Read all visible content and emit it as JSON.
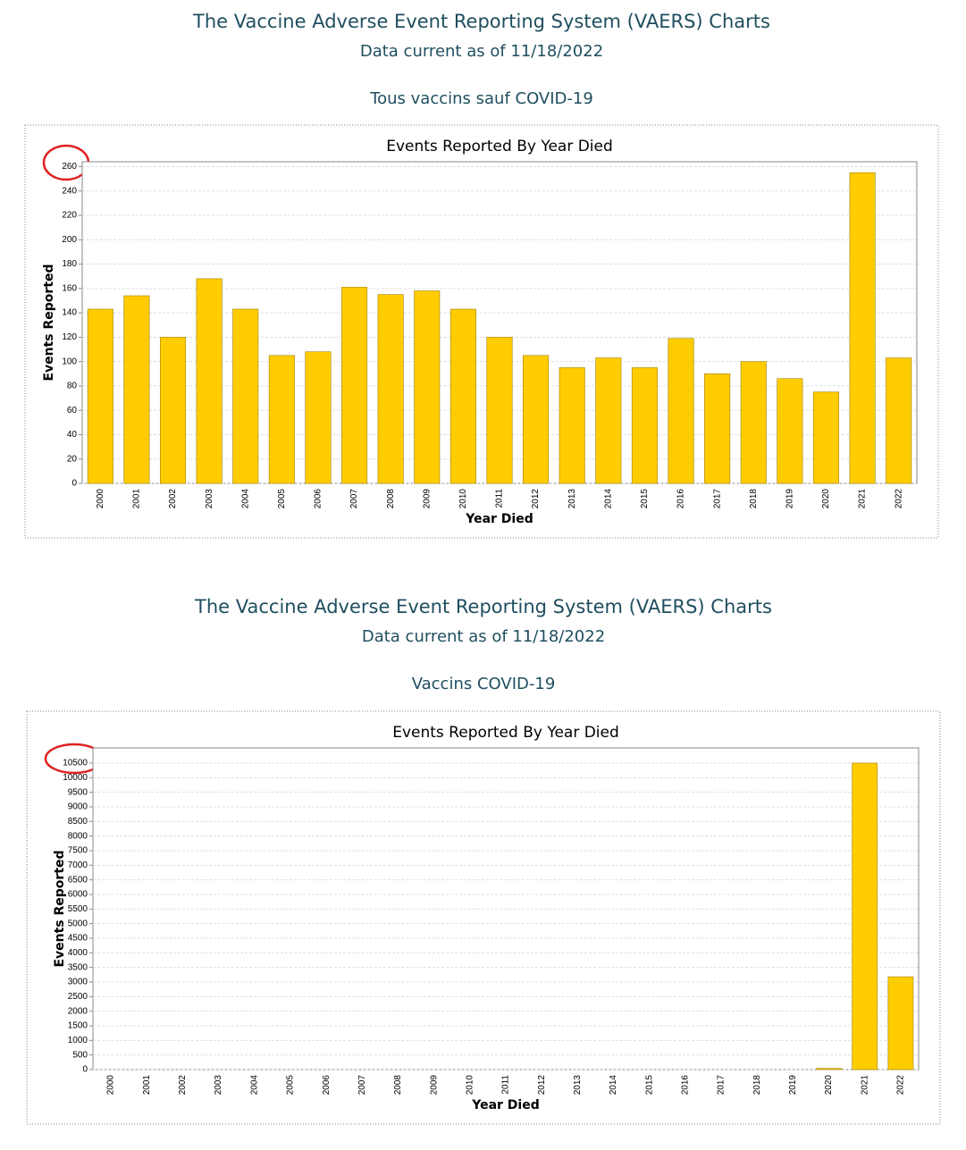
{
  "chart_data": [
    {
      "type": "bar",
      "header": "The Vaccine Adverse Event Reporting System (VAERS) Charts",
      "subheader": "Data current as of 11/18/2022",
      "subtitle": "Tous vaccins sauf COVID-19",
      "title": "Events Reported By Year Died",
      "x_label": "Year Died",
      "y_label": "Events Reported",
      "categories": [
        "2000",
        "2001",
        "2002",
        "2003",
        "2004",
        "2005",
        "2006",
        "2007",
        "2008",
        "2009",
        "2010",
        "2011",
        "2012",
        "2013",
        "2014",
        "2015",
        "2016",
        "2017",
        "2018",
        "2019",
        "2020",
        "2021",
        "2022"
      ],
      "values": [
        143,
        154,
        120,
        168,
        143,
        105,
        108,
        161,
        155,
        158,
        143,
        120,
        105,
        95,
        103,
        95,
        119,
        90,
        100,
        86,
        75,
        255,
        103
      ],
      "color": "#ffcc00",
      "ylim": [
        0,
        264
      ],
      "yticks": [
        0,
        20,
        40,
        60,
        80,
        100,
        120,
        140,
        160,
        180,
        200,
        220,
        240,
        260
      ],
      "grid": true
    },
    {
      "type": "bar",
      "header": "The Vaccine Adverse Event Reporting System (VAERS) Charts",
      "subheader": "Data current as of 11/18/2022",
      "subtitle": "Vaccins COVID-19",
      "title": "Events Reported By Year Died",
      "x_label": "Year Died",
      "y_label": "Events Reported",
      "categories": [
        "2000",
        "2001",
        "2002",
        "2003",
        "2004",
        "2005",
        "2006",
        "2007",
        "2008",
        "2009",
        "2010",
        "2011",
        "2012",
        "2013",
        "2014",
        "2015",
        "2016",
        "2017",
        "2018",
        "2019",
        "2020",
        "2021",
        "2022"
      ],
      "values": [
        0,
        0,
        0,
        0,
        0,
        0,
        0,
        0,
        0,
        0,
        0,
        0,
        0,
        0,
        0,
        0,
        0,
        0,
        0,
        0,
        40,
        10500,
        3180
      ],
      "color": "#ffcc00",
      "ylim": [
        0,
        11020
      ],
      "yticks": [
        0,
        500,
        1000,
        1500,
        2000,
        2500,
        3000,
        3500,
        4000,
        4500,
        5000,
        5500,
        6000,
        6500,
        7000,
        7500,
        8000,
        8500,
        9000,
        9500,
        10000,
        10500
      ],
      "grid": true
    }
  ]
}
